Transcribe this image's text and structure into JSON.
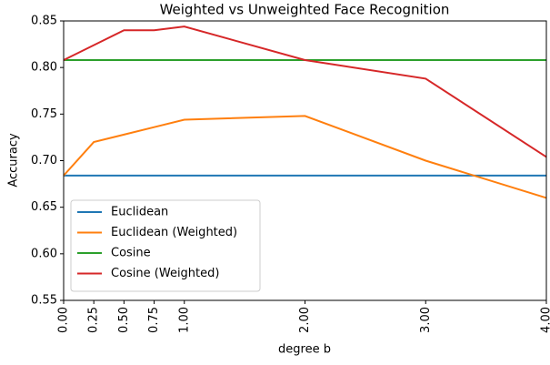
{
  "chart_data": {
    "type": "line",
    "title": "Weighted vs Unweighted Face Recognition",
    "xlabel": "degree b",
    "ylabel": "Accuracy",
    "x": [
      0,
      0.25,
      0.5,
      0.75,
      1,
      2,
      3,
      4
    ],
    "series": [
      {
        "name": "Euclidean",
        "color": "#1f77b4",
        "values": [
          0.684,
          0.684,
          0.684,
          0.684,
          0.684,
          0.684,
          0.684,
          0.684
        ]
      },
      {
        "name": "Euclidean (Weighted)",
        "color": "#ff7f0e",
        "values": [
          0.684,
          0.72,
          0.728,
          0.736,
          0.744,
          0.748,
          0.7,
          0.66
        ]
      },
      {
        "name": "Cosine",
        "color": "#2ca02c",
        "values": [
          0.808,
          0.808,
          0.808,
          0.808,
          0.808,
          0.808,
          0.808,
          0.808
        ]
      },
      {
        "name": "Cosine (Weighted)",
        "color": "#d62728",
        "values": [
          0.808,
          0.824,
          0.84,
          0.84,
          0.844,
          0.808,
          0.788,
          0.704
        ]
      }
    ],
    "xlim": [
      0,
      4
    ],
    "xticks": [
      {
        "value": 0,
        "label": "0.00"
      },
      {
        "value": 0.25,
        "label": "0.25"
      },
      {
        "value": 0.5,
        "label": "0.50"
      },
      {
        "value": 0.75,
        "label": "0.75"
      },
      {
        "value": 1,
        "label": "1.00"
      },
      {
        "value": 2,
        "label": "2.00"
      },
      {
        "value": 3,
        "label": "3.00"
      },
      {
        "value": 4,
        "label": "4.00"
      }
    ],
    "ylim": [
      0.55,
      0.85
    ],
    "yticks": [
      0.55,
      {
        "value": 0.6,
        "label": "0.60"
      },
      0.65,
      {
        "value": 0.7,
        "label": "0.70"
      },
      0.75,
      {
        "value": 0.8,
        "label": "0.80"
      },
      0.85
    ],
    "legend": "lower left"
  }
}
